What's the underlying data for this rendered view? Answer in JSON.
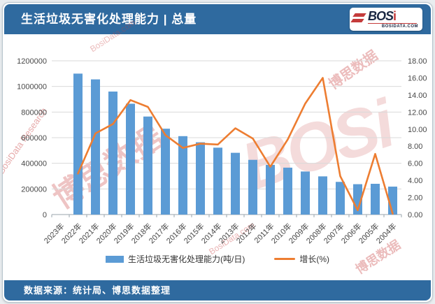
{
  "header": {
    "title": "生活垃圾无害化处理能力 | 总量",
    "logo": {
      "brand_left": "BOS",
      "brand_accent": "i",
      "domain": "BOSIDATA.COM"
    }
  },
  "footer": {
    "source": "数据来源：统计局、博思数据整理"
  },
  "legend": {
    "bar_label": "生活垃圾无害化处理能力(吨/日)",
    "line_label": "增长(%)"
  },
  "watermarks": [
    "博思数据",
    "BOSi",
    "BosiData Research",
    "博思数据",
    "BosiData.com",
    "博思数据",
    "BosiData.com"
  ],
  "colors": {
    "header_bg": "#2f6a9f",
    "bar": "#5b9bd5",
    "line": "#ed7d31",
    "grid": "#d9d9d9",
    "axis": "#9aa4ad",
    "watermark": "#c84040"
  },
  "chart_data": {
    "type": "bar",
    "subtype": "combo-bar-line",
    "title": "生活垃圾无害化处理能力 | 总量",
    "categories": [
      "2023年",
      "2022年",
      "2021年",
      "2020年",
      "2019年",
      "2018年",
      "2017年",
      "2016年",
      "2015年",
      "2014年",
      "2013年",
      "2012年",
      "2011年",
      "2010年",
      "2009年",
      "2008年",
      "2007年",
      "2006年",
      "2005年",
      "2004年"
    ],
    "series": [
      {
        "name": "生活垃圾无害化处理能力(吨/日)",
        "type": "bar",
        "axis": "left",
        "color": "#5b9bd5",
        "values": [
          null,
          1100000,
          1055000,
          960000,
          865000,
          765000,
          670000,
          612000,
          564000,
          522000,
          482000,
          427000,
          388000,
          366000,
          336000,
          298000,
          255000,
          237000,
          240000,
          218000
        ]
      },
      {
        "name": "增长(%)",
        "type": "line",
        "axis": "right",
        "color": "#ed7d31",
        "values": [
          null,
          4.8,
          9.5,
          10.6,
          13.4,
          12.6,
          9.3,
          7.8,
          8.3,
          8.2,
          10.1,
          8.9,
          5.6,
          8.8,
          13.0,
          16.0,
          4.5,
          0.5,
          7.1,
          0.1
        ]
      }
    ],
    "left_axis": {
      "min": 0,
      "max": 1200000,
      "step": 200000,
      "tick_labels": [
        "0",
        "200000",
        "400000",
        "600000",
        "800000",
        "1000000",
        "1200000"
      ]
    },
    "right_axis": {
      "min": 0,
      "max": 18,
      "step": 2,
      "tick_labels": [
        "0.00",
        "2.00",
        "4.00",
        "6.00",
        "8.00",
        "10.00",
        "12.00",
        "14.00",
        "16.00",
        "18.00"
      ]
    },
    "grid": true,
    "legend_position": "bottom",
    "x_labels_rotated": true
  }
}
